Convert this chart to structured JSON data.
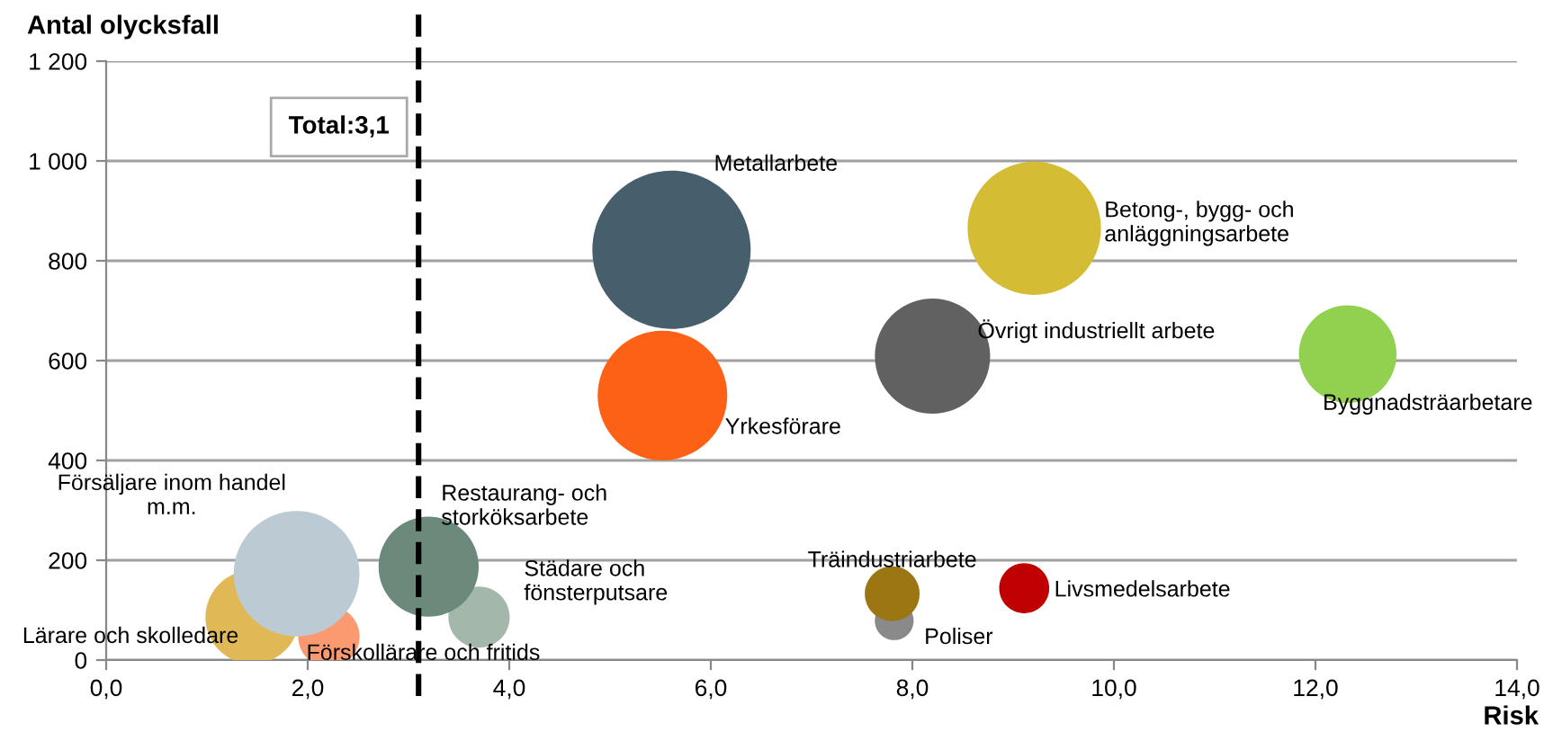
{
  "chart_data": {
    "type": "bubble",
    "xlabel": "Risk",
    "ylabel": "Antal olycksfall",
    "xlim": [
      0,
      14
    ],
    "ylim": [
      0,
      1200
    ],
    "xticks": [
      {
        "value": 0,
        "label": "0,0"
      },
      {
        "value": 2,
        "label": "2,0"
      },
      {
        "value": 4,
        "label": "4,0"
      },
      {
        "value": 6,
        "label": "6,0"
      },
      {
        "value": 8,
        "label": "8,0"
      },
      {
        "value": 10,
        "label": "10,0"
      },
      {
        "value": 12,
        "label": "12,0"
      },
      {
        "value": 14,
        "label": "14,0"
      }
    ],
    "yticks": [
      0,
      200,
      400,
      600,
      800,
      {
        "value": 1000,
        "label": "1 000"
      },
      {
        "value": 1200,
        "label": "1 200"
      }
    ],
    "grid": "y",
    "legend": false,
    "ref_lines": [
      {
        "axis": "x",
        "value": 3.1,
        "label": "Total:3,1",
        "line_style": "dashed",
        "color": "#000000"
      }
    ],
    "series": [
      {
        "name": "Metallarbete",
        "color": "#475f6d",
        "x": [
          5.61
        ],
        "values": [
          822
        ],
        "sizes": [
          1
        ]
      },
      {
        "name": "Betong-, bygg- och\nanläggningsarbete",
        "color": "#d4bd35",
        "x": [
          9.21
        ],
        "values": [
          865
        ],
        "sizes": [
          0.71
        ]
      },
      {
        "name": "Övrigt industriellt arbete",
        "color": "#616161",
        "x": [
          8.2
        ],
        "values": [
          609
        ],
        "sizes": [
          0.53
        ]
      },
      {
        "name": "Byggnadsträarbetare",
        "color": "#92d050",
        "x": [
          12.32
        ],
        "values": [
          613
        ],
        "sizes": [
          0.38
        ]
      },
      {
        "name": "Yrkesförare",
        "color": "#fd6116",
        "x": [
          5.52
        ],
        "values": [
          530
        ],
        "sizes": [
          0.67
        ]
      },
      {
        "name": "Lärare och skolledare",
        "color": "#e0b956",
        "x": [
          1.45
        ],
        "values": [
          86
        ],
        "sizes": [
          0.35
        ]
      },
      {
        "name": "Förskollärare och fritids",
        "color": "#fb9a71",
        "x": [
          2.21
        ],
        "values": [
          47
        ],
        "sizes": [
          0.15
        ]
      },
      {
        "name": "Försäljare inom handel\nm.m.",
        "color": "#bccbd3",
        "x": [
          1.89
        ],
        "values": [
          173
        ],
        "sizes": [
          0.63
        ]
      },
      {
        "name": "Städare och\nfönsterputsare",
        "color": "#a3b8ab",
        "x": [
          3.7
        ],
        "values": [
          86
        ],
        "sizes": [
          0.15
        ]
      },
      {
        "name": "Restaurang- och\nstorköksarbete",
        "color": "#6b8a7c",
        "x": [
          3.2
        ],
        "values": [
          187
        ],
        "sizes": [
          0.4
        ]
      },
      {
        "name": "Poliser",
        "color": "#8a8a8a",
        "x": [
          7.82
        ],
        "values": [
          79
        ],
        "sizes": [
          0.06
        ]
      },
      {
        "name": "Träindustriarbete",
        "color": "#9b7613",
        "x": [
          7.8
        ],
        "values": [
          133
        ],
        "sizes": [
          0.12
        ]
      },
      {
        "name": "Livsmedelsarbete",
        "color": "#c00000",
        "x": [
          9.11
        ],
        "values": [
          144
        ],
        "sizes": [
          0.1
        ]
      }
    ]
  }
}
